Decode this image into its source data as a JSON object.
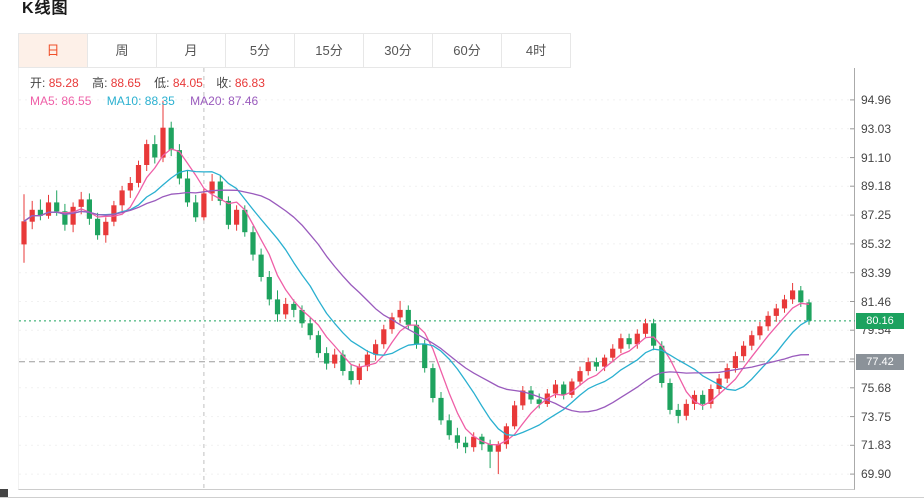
{
  "page": {
    "title": "K线图"
  },
  "tabs": [
    {
      "label": "日",
      "active": true
    },
    {
      "label": "周",
      "active": false
    },
    {
      "label": "月",
      "active": false
    },
    {
      "label": "5分",
      "active": false
    },
    {
      "label": "15分",
      "active": false
    },
    {
      "label": "30分",
      "active": false
    },
    {
      "label": "60分",
      "active": false
    },
    {
      "label": "4时",
      "active": false
    }
  ],
  "legend": {
    "ohlc": [
      {
        "label": "开:",
        "value": "85.28"
      },
      {
        "label": "高:",
        "value": "88.65"
      },
      {
        "label": "低:",
        "value": "84.05"
      },
      {
        "label": "收:",
        "value": "86.83"
      }
    ],
    "ma": [
      {
        "label": "MA5:",
        "value": "86.55"
      },
      {
        "label": "MA10:",
        "value": "88.35"
      },
      {
        "label": "MA20:",
        "value": "87.46"
      }
    ]
  },
  "price_markers": {
    "last_price": {
      "value": "80.16",
      "color": "#1ca25f"
    },
    "reference": {
      "value": "77.42",
      "color": "#8b9299"
    }
  },
  "chart_data": {
    "type": "candlestick",
    "title": "K线图 (daily candles with MA5/MA10/MA20)",
    "y_ticks": [
      94.96,
      93.03,
      91.1,
      89.18,
      87.25,
      85.32,
      83.39,
      81.46,
      79.54,
      77.61,
      75.68,
      73.75,
      71.83,
      69.9
    ],
    "price_min": 68.9,
    "price_max": 97.1,
    "up_color": "#e83939",
    "down_color": "#1fa35f",
    "ma_periods": [
      5,
      10,
      20
    ],
    "ma_colors": [
      "#ef5fa7",
      "#2ab0d0",
      "#9a5bbd"
    ],
    "last_price": 80.16,
    "reference_price": 77.42,
    "vertical_marker_index": 22,
    "candles": [
      [
        85.28,
        88.65,
        84.05,
        86.83
      ],
      [
        86.8,
        88.2,
        86.3,
        87.6
      ],
      [
        87.6,
        88.3,
        86.9,
        87.2
      ],
      [
        87.2,
        88.6,
        87.0,
        88.1
      ],
      [
        88.1,
        88.9,
        87.2,
        87.5
      ],
      [
        87.5,
        88.0,
        86.2,
        86.6
      ],
      [
        86.6,
        88.1,
        86.1,
        87.8
      ],
      [
        87.8,
        88.8,
        87.3,
        88.3
      ],
      [
        88.3,
        88.7,
        86.6,
        87.0
      ],
      [
        87.0,
        87.4,
        85.6,
        85.9
      ],
      [
        85.9,
        87.1,
        85.4,
        86.8
      ],
      [
        86.8,
        88.2,
        86.5,
        87.9
      ],
      [
        87.9,
        89.2,
        87.5,
        88.9
      ],
      [
        88.9,
        89.8,
        88.4,
        89.4
      ],
      [
        89.4,
        90.9,
        89.1,
        90.6
      ],
      [
        90.6,
        92.3,
        90.2,
        92.0
      ],
      [
        92.0,
        92.6,
        90.7,
        91.1
      ],
      [
        91.1,
        94.9,
        90.8,
        93.1
      ],
      [
        93.1,
        93.5,
        91.2,
        91.6
      ],
      [
        91.6,
        92.0,
        89.3,
        89.7
      ],
      [
        89.7,
        90.2,
        87.8,
        88.1
      ],
      [
        88.1,
        88.6,
        86.8,
        87.1
      ],
      [
        87.1,
        89.0,
        86.9,
        88.7
      ],
      [
        88.7,
        90.0,
        88.2,
        89.5
      ],
      [
        89.5,
        89.9,
        87.9,
        88.2
      ],
      [
        88.2,
        88.5,
        86.3,
        86.6
      ],
      [
        86.6,
        87.9,
        86.2,
        87.6
      ],
      [
        87.6,
        87.9,
        85.8,
        86.1
      ],
      [
        86.1,
        86.5,
        84.2,
        84.6
      ],
      [
        84.6,
        85.0,
        82.8,
        83.1
      ],
      [
        83.1,
        83.5,
        81.2,
        81.6
      ],
      [
        81.6,
        82.2,
        80.1,
        80.6
      ],
      [
        80.6,
        81.7,
        80.3,
        81.3
      ],
      [
        81.3,
        81.6,
        80.4,
        80.9
      ],
      [
        80.9,
        81.2,
        79.7,
        80.0
      ],
      [
        80.0,
        80.4,
        78.9,
        79.2
      ],
      [
        79.2,
        79.5,
        77.7,
        78.0
      ],
      [
        78.0,
        78.4,
        76.9,
        77.3
      ],
      [
        77.3,
        78.3,
        77.0,
        77.9
      ],
      [
        77.9,
        78.2,
        76.5,
        76.8
      ],
      [
        76.8,
        77.2,
        75.9,
        76.2
      ],
      [
        76.2,
        77.3,
        75.9,
        77.1
      ],
      [
        77.1,
        78.2,
        76.8,
        77.9
      ],
      [
        77.9,
        78.9,
        77.5,
        78.6
      ],
      [
        78.6,
        79.9,
        78.3,
        79.6
      ],
      [
        79.6,
        80.7,
        79.3,
        80.4
      ],
      [
        80.4,
        81.5,
        80.0,
        80.9
      ],
      [
        80.9,
        81.2,
        79.6,
        79.9
      ],
      [
        79.9,
        80.2,
        78.3,
        78.6
      ],
      [
        78.6,
        78.9,
        76.7,
        77.0
      ],
      [
        77.0,
        77.3,
        74.7,
        75.0
      ],
      [
        75.0,
        75.4,
        73.2,
        73.5
      ],
      [
        73.5,
        73.9,
        72.2,
        72.5
      ],
      [
        72.5,
        73.0,
        71.6,
        72.0
      ],
      [
        72.0,
        72.4,
        71.3,
        71.7
      ],
      [
        71.7,
        72.7,
        71.4,
        72.4
      ],
      [
        72.4,
        72.6,
        71.5,
        71.9
      ],
      [
        71.9,
        72.2,
        70.3,
        71.4
      ],
      [
        71.4,
        72.1,
        69.9,
        71.9
      ],
      [
        71.9,
        73.3,
        71.6,
        73.1
      ],
      [
        73.1,
        74.8,
        72.9,
        74.5
      ],
      [
        74.5,
        75.8,
        74.2,
        75.5
      ],
      [
        75.5,
        75.8,
        74.6,
        74.9
      ],
      [
        74.9,
        75.3,
        74.3,
        74.6
      ],
      [
        74.6,
        75.6,
        74.4,
        75.3
      ],
      [
        75.3,
        76.2,
        75.0,
        75.9
      ],
      [
        75.9,
        76.1,
        74.9,
        75.2
      ],
      [
        75.2,
        76.3,
        75.0,
        76.1
      ],
      [
        76.1,
        77.1,
        75.8,
        76.8
      ],
      [
        76.8,
        77.7,
        76.5,
        77.4
      ],
      [
        77.4,
        77.7,
        76.8,
        77.1
      ],
      [
        77.1,
        77.9,
        76.8,
        77.7
      ],
      [
        77.7,
        78.6,
        77.4,
        78.3
      ],
      [
        78.3,
        79.3,
        78.0,
        79.0
      ],
      [
        79.0,
        79.3,
        78.3,
        78.6
      ],
      [
        78.6,
        79.6,
        78.3,
        79.3
      ],
      [
        79.3,
        80.3,
        79.0,
        80.0
      ],
      [
        80.0,
        80.3,
        78.2,
        78.5
      ],
      [
        78.5,
        78.8,
        75.7,
        76.0
      ],
      [
        76.0,
        76.3,
        73.9,
        74.2
      ],
      [
        74.2,
        74.6,
        73.3,
        73.8
      ],
      [
        73.8,
        74.9,
        73.5,
        74.6
      ],
      [
        74.6,
        75.5,
        74.2,
        75.2
      ],
      [
        75.2,
        75.5,
        74.2,
        74.6
      ],
      [
        74.6,
        75.9,
        74.3,
        75.6
      ],
      [
        75.6,
        76.6,
        75.2,
        76.3
      ],
      [
        76.3,
        77.3,
        76.0,
        77.0
      ],
      [
        77.0,
        78.1,
        76.7,
        77.8
      ],
      [
        77.8,
        78.8,
        77.5,
        78.5
      ],
      [
        78.5,
        79.5,
        78.2,
        79.2
      ],
      [
        79.2,
        80.1,
        78.9,
        79.8
      ],
      [
        79.8,
        80.8,
        79.5,
        80.5
      ],
      [
        80.5,
        81.3,
        80.1,
        81.0
      ],
      [
        81.0,
        81.9,
        80.7,
        81.6
      ],
      [
        81.6,
        82.7,
        81.3,
        82.2
      ],
      [
        82.2,
        82.5,
        81.1,
        81.4
      ],
      [
        81.4,
        81.6,
        79.9,
        80.16
      ]
    ]
  }
}
